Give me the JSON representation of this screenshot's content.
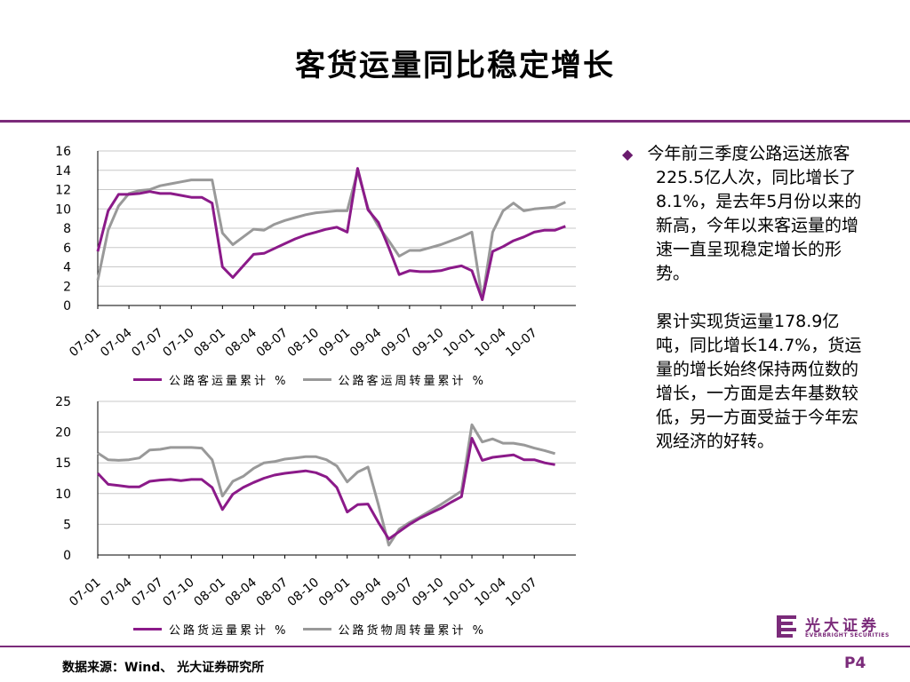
{
  "title": "客货运量同比稳定增长",
  "bullet": {
    "para1": "今年前三季度公路运送旅客225.5亿人次，同比增长了8.1%，是去年5月份以来的新高，今年以来客运量的增速一直呈现稳定增长的形势。",
    "para2": "累计实现货运量178.9亿吨，同比增长14.7%，货运量的增长始终保持两位数的增长，一方面是去年基数较低，另一方面受益于今年宏观经济的好转。"
  },
  "footer": {
    "source": "数据来源：Wind、 光大证券研究所",
    "page": "P4"
  },
  "logo": {
    "cn": "光大证券",
    "en": "EVERBRIGHT SECURITIES"
  },
  "colors": {
    "accent": "#7b2b7a",
    "series_purple": "#8b1a89",
    "series_gray": "#999999"
  },
  "chart_data": [
    {
      "type": "line",
      "ylim": [
        0,
        16
      ],
      "yticks": [
        0,
        2,
        4,
        6,
        8,
        10,
        12,
        14,
        16
      ],
      "x_tick_labels": [
        "07-01",
        "07-04",
        "07-07",
        "07-10",
        "08-01",
        "08-04",
        "08-07",
        "08-10",
        "09-01",
        "09-04",
        "09-07",
        "09-10",
        "10-01",
        "10-04",
        "10-07"
      ],
      "x_count": 47,
      "series": [
        {
          "name": "公路客运量累计 %",
          "color": "#8b1a89",
          "values": [
            5.6,
            9.8,
            11.5,
            11.5,
            11.6,
            11.8,
            11.6,
            11.6,
            11.4,
            11.2,
            11.2,
            10.6,
            4.0,
            2.9,
            4.1,
            5.3,
            5.4,
            5.9,
            6.4,
            6.9,
            7.3,
            7.6,
            7.9,
            8.1,
            7.6,
            14.2,
            9.9,
            8.6,
            6.0,
            3.2,
            3.6,
            3.5,
            3.5,
            3.6,
            3.9,
            4.1,
            3.6,
            0.6,
            5.6,
            6.1,
            6.7,
            7.1,
            7.6,
            7.8,
            7.8,
            8.2,
            null
          ]
        },
        {
          "name": "公路客运周转量累计 %",
          "color": "#999999",
          "values": [
            2.6,
            7.8,
            10.3,
            11.6,
            11.9,
            12.0,
            12.4,
            12.6,
            12.8,
            13.0,
            13.0,
            13.0,
            7.5,
            6.3,
            7.1,
            7.9,
            7.8,
            8.4,
            8.8,
            9.1,
            9.4,
            9.6,
            9.7,
            9.8,
            9.8,
            13.9,
            10.1,
            8.2,
            6.7,
            5.1,
            5.7,
            5.7,
            6.0,
            6.3,
            6.7,
            7.1,
            7.6,
            0.6,
            7.6,
            9.8,
            10.6,
            9.8,
            10.0,
            10.1,
            10.2,
            10.7,
            null
          ]
        }
      ]
    },
    {
      "type": "line",
      "ylim": [
        0,
        25
      ],
      "yticks": [
        0,
        5,
        10,
        15,
        20,
        25
      ],
      "x_tick_labels": [
        "07-01",
        "07-04",
        "07-07",
        "07-10",
        "08-01",
        "08-04",
        "08-07",
        "08-10",
        "09-01",
        "09-04",
        "09-07",
        "09-10",
        "10-01",
        "10-04",
        "10-07"
      ],
      "x_count": 47,
      "series": [
        {
          "name": "公路货运量累计 %",
          "color": "#8b1a89",
          "values": [
            13.3,
            11.5,
            11.3,
            11.1,
            11.1,
            12.0,
            12.2,
            12.3,
            12.1,
            12.3,
            12.3,
            11.0,
            7.4,
            9.9,
            11.0,
            11.8,
            12.5,
            13.0,
            13.3,
            13.5,
            13.7,
            13.4,
            12.7,
            11.0,
            7.0,
            8.2,
            8.3,
            5.3,
            2.6,
            3.8,
            5.0,
            6.0,
            6.8,
            7.6,
            8.6,
            9.5,
            19.0,
            15.4,
            15.9,
            16.1,
            16.3,
            15.5,
            15.5,
            15.0,
            14.7,
            null,
            null
          ]
        },
        {
          "name": "公路货物周转量累计 %",
          "color": "#999999",
          "values": [
            16.6,
            15.5,
            15.4,
            15.5,
            15.8,
            17.1,
            17.2,
            17.5,
            17.5,
            17.5,
            17.4,
            15.5,
            9.6,
            12.0,
            12.8,
            14.1,
            15.0,
            15.2,
            15.6,
            15.8,
            16.0,
            16.0,
            15.5,
            14.5,
            11.9,
            13.5,
            14.3,
            8.2,
            1.6,
            4.2,
            5.3,
            6.2,
            7.2,
            8.2,
            9.3,
            10.4,
            21.2,
            18.4,
            18.9,
            18.2,
            18.2,
            17.9,
            17.4,
            17.0,
            16.5,
            null,
            null
          ]
        }
      ]
    }
  ]
}
